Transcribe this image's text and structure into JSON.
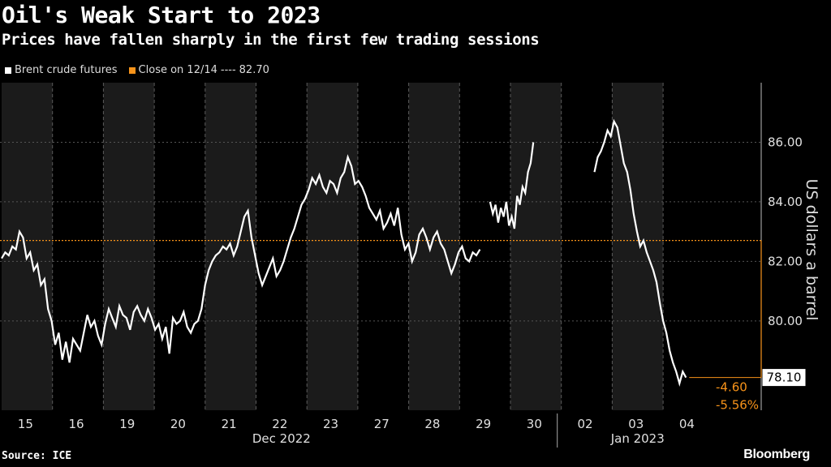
{
  "title": "Oil's Weak Start to 2023",
  "subtitle": "Prices have fallen sharply in the first few trading sessions",
  "legend": {
    "series": "Brent crude futures",
    "reference_prefix": "Close on 12/14",
    "reference_dashes": "----",
    "reference_value": "82.70"
  },
  "source": "Source: ICE",
  "brand": "Bloomberg",
  "colors": {
    "background": "#000000",
    "band": "#1b1b1b",
    "line": "#ffffff",
    "reference": "#f7931a"
  },
  "chart_data": {
    "type": "line",
    "title": "Oil's Weak Start to 2023",
    "ylabel": "US dollars a barrel",
    "ylim": [
      77.0,
      88.0
    ],
    "yticks": [
      80.0,
      82.0,
      84.0,
      86.0
    ],
    "ytick_labels": [
      "80.00",
      "82.00",
      "84.00",
      "86.00"
    ],
    "x_sessions": [
      "15",
      "16",
      "19",
      "20",
      "21",
      "22",
      "23",
      "27",
      "28",
      "29",
      "30",
      "02",
      "03",
      "04"
    ],
    "month_labels": [
      {
        "label": "Dec 2022",
        "sessions": [
          0,
          10
        ]
      },
      {
        "label": "Jan 2023",
        "sessions": [
          11,
          13
        ]
      }
    ],
    "reference": {
      "label": "Close on 12/14",
      "value": 82.7
    },
    "last_value": 78.1,
    "last_label": "78.10",
    "change_abs": "-4.60",
    "change_pct": "-5.56%",
    "series": [
      {
        "name": "Brent crude futures",
        "segments": [
          {
            "start": 0.0,
            "end": 9.4,
            "values": [
              82.1,
              82.3,
              82.2,
              82.5,
              82.4,
              83.0,
              82.8,
              82.1,
              82.3,
              81.7,
              81.9,
              81.2,
              81.4,
              80.4,
              80.0,
              79.2,
              79.6,
              78.7,
              79.3,
              78.6,
              79.4,
              79.2,
              79.0,
              79.6,
              80.2,
              79.8,
              80.0,
              79.5,
              79.2,
              79.9,
              80.4,
              80.1,
              79.8,
              80.5,
              80.2,
              80.1,
              79.7,
              80.3,
              80.5,
              80.2,
              80.0,
              80.4,
              80.1,
              79.7,
              79.9,
              79.4,
              79.8,
              78.9,
              80.1,
              79.9,
              80.0,
              80.3,
              79.8,
              79.6,
              79.9,
              80.0,
              80.4,
              81.2,
              81.7,
              82.0,
              82.2,
              82.3,
              82.5,
              82.4,
              82.6,
              82.2,
              82.5,
              83.0,
              83.5,
              83.7,
              82.8,
              82.2,
              81.6,
              81.2,
              81.5,
              81.8,
              82.1,
              81.5,
              81.7,
              82.0,
              82.4,
              82.8,
              83.1,
              83.5,
              83.9,
              84.1,
              84.4,
              84.8,
              84.6,
              84.9,
              84.5,
              84.3,
              84.7,
              84.6,
              84.3,
              84.8,
              85.0,
              85.5,
              85.2,
              84.6,
              84.7,
              84.5,
              84.2,
              83.8,
              83.6,
              83.4,
              83.7,
              83.1,
              83.3,
              83.6,
              83.2,
              83.8,
              82.9,
              82.4,
              82.6,
              82.0,
              82.3,
              82.9,
              83.1,
              82.8,
              82.4,
              82.8,
              83.0,
              82.6,
              82.4,
              82.0,
              81.6,
              81.9,
              82.3,
              82.5,
              82.1,
              82.0,
              82.3,
              82.2,
              82.4
            ]
          },
          {
            "start": 9.6,
            "end": 10.45,
            "values": [
              84.0,
              83.6,
              83.9,
              83.3,
              83.8,
              83.5,
              84.0,
              83.2,
              83.5,
              83.1,
              84.2,
              83.9,
              84.5,
              84.3,
              85.0,
              85.3,
              86.0
            ]
          },
          {
            "start": 11.65,
            "end": 13.45,
            "values": [
              85.0,
              85.5,
              85.7,
              86.0,
              86.4,
              86.2,
              86.7,
              86.5,
              85.9,
              85.3,
              85.0,
              84.4,
              83.6,
              83.0,
              82.5,
              82.7,
              82.3,
              82.0,
              81.7,
              81.3,
              80.6,
              80.0,
              79.6,
              79.0,
              78.6,
              78.3,
              77.9,
              78.3,
              78.1
            ]
          }
        ]
      }
    ]
  }
}
